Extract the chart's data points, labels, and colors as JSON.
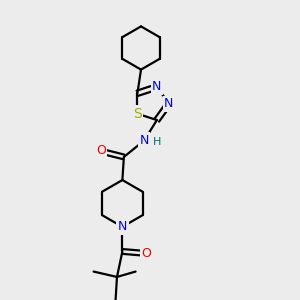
{
  "bg_color": "#ececec",
  "bond_color": "#000000",
  "bond_width": 1.6,
  "atom_colors": {
    "N": "#0000ee",
    "O": "#ee0000",
    "S": "#aaaa00",
    "H": "#007070",
    "C": "#000000"
  },
  "font_size": 9,
  "fig_size": [
    3.0,
    3.0
  ],
  "dpi": 100
}
